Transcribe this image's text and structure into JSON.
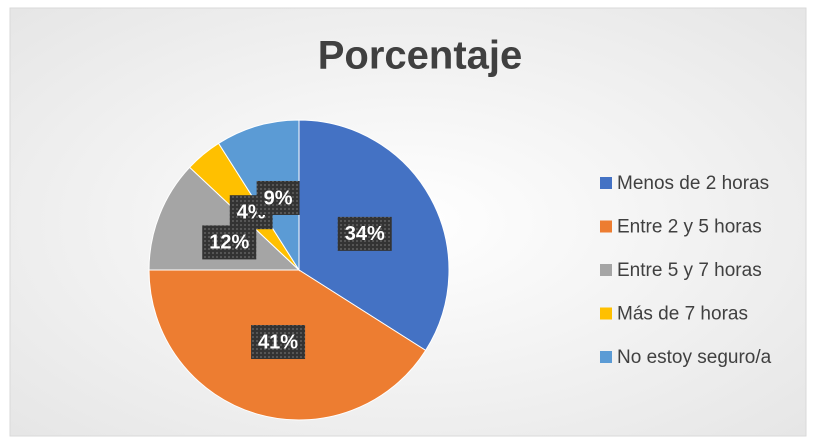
{
  "chart_data": {
    "type": "pie",
    "title": "Porcentaje",
    "categories": [
      "Menos de 2 horas",
      "Entre 2 y 5 horas",
      "Entre 5 y 7 horas",
      "Más de 7 horas",
      "No estoy seguro/a"
    ],
    "values": [
      34,
      41,
      12,
      4,
      9
    ],
    "value_labels": [
      "34%",
      "41%",
      "12%",
      "4%",
      "9%"
    ],
    "colors": [
      "#4472c4",
      "#ed7d31",
      "#a5a5a5",
      "#ffc000",
      "#5b9bd5"
    ],
    "legend": "right"
  }
}
